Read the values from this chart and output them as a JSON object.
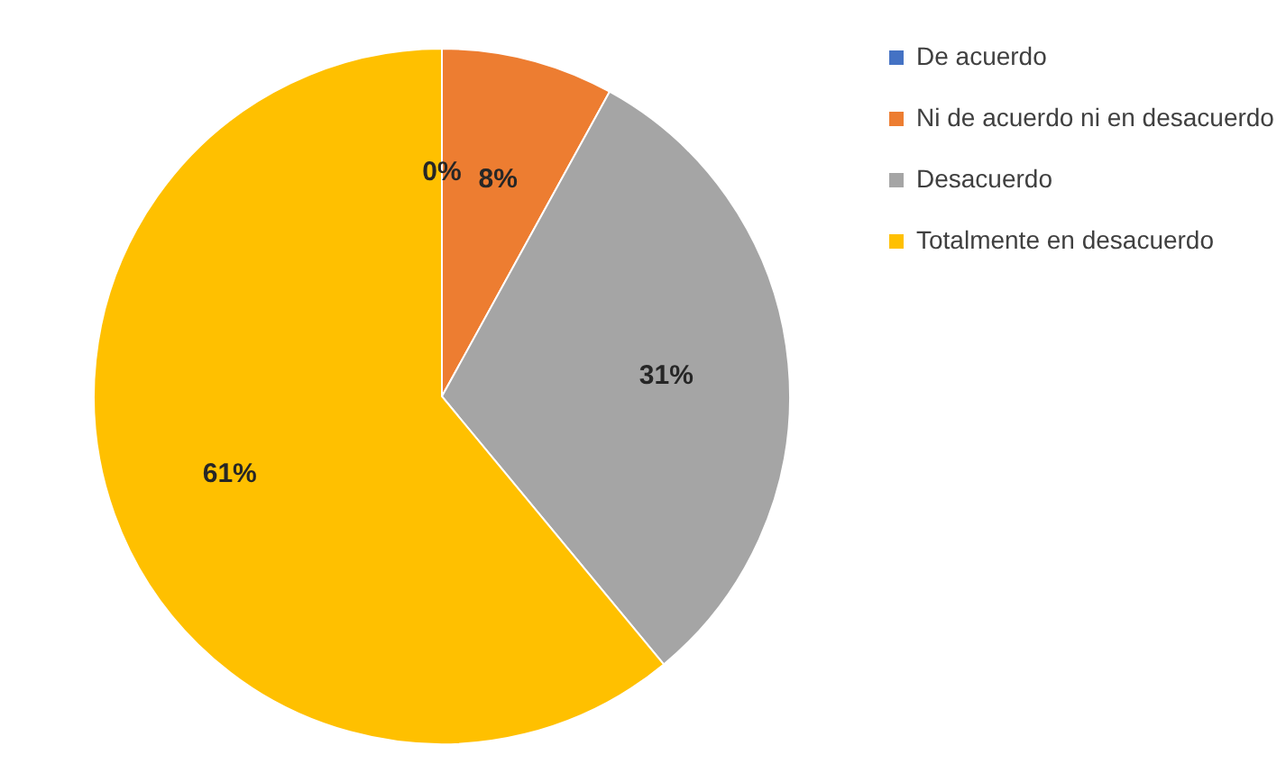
{
  "chart_data": {
    "type": "pie",
    "categories": [
      "De acuerdo",
      "Ni de acuerdo ni en desacuerdo",
      "Desacuerdo",
      "Totalmente en desacuerdo"
    ],
    "values": [
      0,
      8,
      31,
      61
    ],
    "colors": [
      "#4472c4",
      "#ed7d31",
      "#a5a5a5",
      "#ffc000"
    ],
    "value_labels": [
      "0%",
      "8%",
      "31%",
      "61%"
    ],
    "legend": "right"
  }
}
